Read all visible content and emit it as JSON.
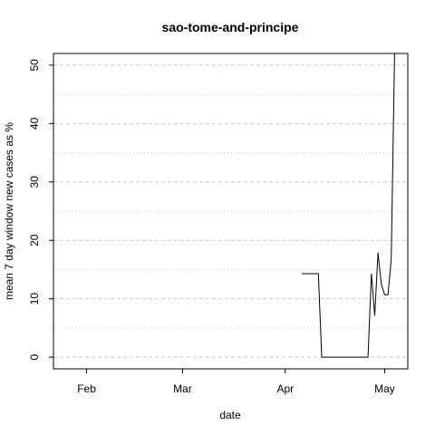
{
  "chart_data": {
    "type": "line",
    "title": "sao-tome-and-principe",
    "xlabel": "date",
    "ylabel": "mean  7  day window new cases as %",
    "x_ticks": [
      "Feb",
      "Mar",
      "Apr",
      "May"
    ],
    "x_tick_dates": [
      "2020-02-01",
      "2020-03-01",
      "2020-04-01",
      "2020-05-01"
    ],
    "x_range": [
      "2020-01-22",
      "2020-05-08"
    ],
    "y_ticks": [
      0,
      10,
      20,
      30,
      40,
      50
    ],
    "ylim": [
      -2,
      52
    ],
    "grid": true,
    "line_color": "#000000",
    "series": [
      {
        "x": [
          "2020-04-06",
          "2020-04-07",
          "2020-04-08",
          "2020-04-09",
          "2020-04-10",
          "2020-04-11",
          "2020-04-12",
          "2020-04-13",
          "2020-04-14",
          "2020-04-15",
          "2020-04-16",
          "2020-04-17",
          "2020-04-18",
          "2020-04-19",
          "2020-04-20",
          "2020-04-21",
          "2020-04-22",
          "2020-04-23",
          "2020-04-24",
          "2020-04-25",
          "2020-04-26",
          "2020-04-27",
          "2020-04-28",
          "2020-04-29",
          "2020-04-30",
          "2020-05-01",
          "2020-05-02",
          "2020-05-03",
          "2020-05-04",
          "2020-05-05"
        ],
        "y": [
          14.3,
          14.3,
          14.3,
          14.3,
          14.3,
          14.3,
          0,
          0,
          0,
          0,
          0,
          0,
          0,
          0,
          0,
          0,
          0,
          0,
          0,
          0,
          0,
          14.3,
          7.1,
          17.9,
          12.5,
          10.7,
          10.7,
          16.7,
          52,
          52
        ]
      }
    ]
  }
}
